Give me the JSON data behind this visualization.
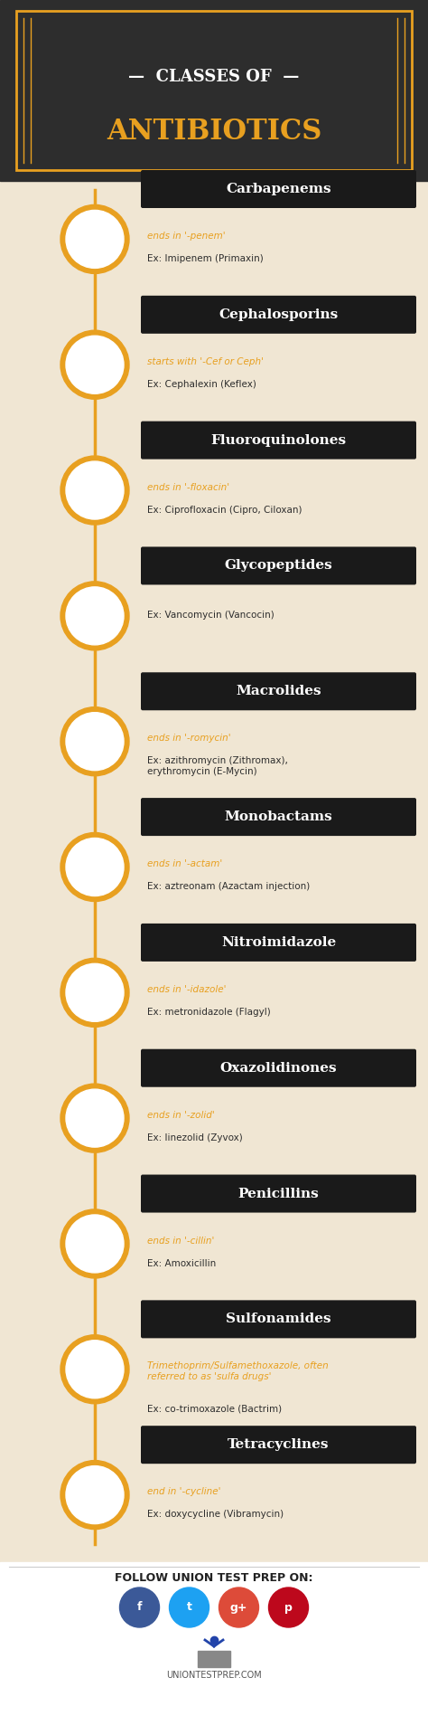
{
  "bg_header_color": "#2d2d2d",
  "bg_body_color": "#f0e6d3",
  "bg_footer_color": "#ffffff",
  "header_title1": "CLASSES OF",
  "header_title2": "ANTIBIOTICS",
  "title1_color": "#ffffff",
  "title2_color": "#e8a020",
  "border_color": "#e8a020",
  "section_label_bg": "#1a1a1a",
  "section_label_color": "#ffffff",
  "hint_color": "#e8a020",
  "example_color": "#2d2d2d",
  "timeline_color": "#e8a020",
  "sections": [
    {
      "name": "Carbapenems",
      "hint": "ends in '-penem'",
      "example": "Ex: Imipenem (Primaxin)"
    },
    {
      "name": "Cephalosporins",
      "hint": "starts with '-Cef or Ceph'",
      "example": "Ex: Cephalexin (Keflex)"
    },
    {
      "name": "Fluoroquinolones",
      "hint": "ends in '-floxacin'",
      "example": "Ex: Ciprofloxacin (Cipro, Ciloxan)"
    },
    {
      "name": "Glycopeptides",
      "hint": "",
      "example": "Ex: Vancomycin (Vancocin)"
    },
    {
      "name": "Macrolides",
      "hint": "ends in '-romycin'",
      "example": "Ex: azithromycin (Zithromax),\nerythromycin (E-Mycin)"
    },
    {
      "name": "Monobactams",
      "hint": "ends in '-actam'",
      "example": "Ex: aztreonam (Azactam injection)"
    },
    {
      "name": "Nitroimidazole",
      "hint": "ends in '-idazole'",
      "example": "Ex: metronidazole (Flagyl)"
    },
    {
      "name": "Oxazolidinones",
      "hint": "ends in '-zolid'",
      "example": "Ex: linezolid (Zyvox)"
    },
    {
      "name": "Penicillins",
      "hint": "ends in '-cillin'",
      "example": "Ex: Amoxicillin"
    },
    {
      "name": "Sulfonamides",
      "hint": "Trimethoprim/Sulfamethoxazole, often\nreferred to as 'sulfa drugs'",
      "example": "Ex: co-trimoxazole (Bactrim)"
    },
    {
      "name": "Tetracyclines",
      "hint": "end in '-cycline'",
      "example": "Ex: doxycycline (Vibramycin)"
    }
  ],
  "footer_text": "FOLLOW UNION TEST PREP ON:",
  "footer_website": "UNIONTESTPREP.COM",
  "social_colors": [
    "#3b5998",
    "#1da1f2",
    "#dd4b39",
    "#bd081c"
  ],
  "social_labels": [
    "f",
    "t",
    "g+",
    "p"
  ]
}
